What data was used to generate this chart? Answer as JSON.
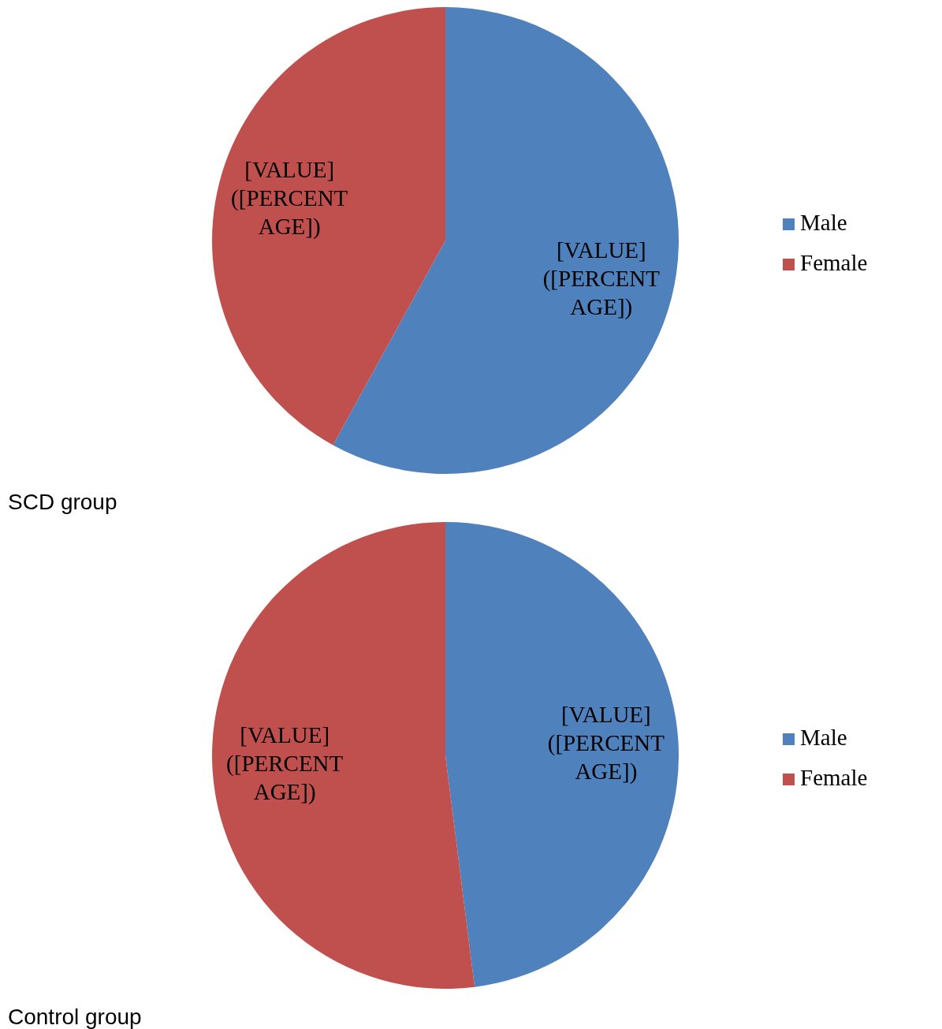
{
  "chart_data": [
    {
      "type": "pie",
      "title": "SCD group",
      "categories": [
        "Male",
        "Female"
      ],
      "values": [
        58,
        42
      ],
      "colors": [
        "#4f81bd",
        "#c0504d"
      ],
      "value_labels": [
        "[VALUE] ([PERCENTAGE])",
        "[VALUE] ([PERCENTAGE])"
      ],
      "legend": "right"
    },
    {
      "type": "pie",
      "title": "Control group",
      "categories": [
        "Male",
        "Female"
      ],
      "values": [
        48,
        52
      ],
      "colors": [
        "#4f81bd",
        "#c0504d"
      ],
      "value_labels": [
        "[VALUE] ([PERCENTAGE])",
        "[VALUE] ([PERCENTAGE])"
      ],
      "legend": "right"
    }
  ]
}
